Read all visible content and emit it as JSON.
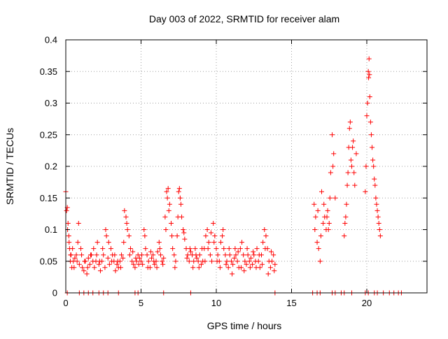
{
  "chart_data": {
    "type": "scatter",
    "title": "Day 003 of 2022, SRMTID for receiver alam",
    "xlabel": "GPS time / hours",
    "ylabel": "SRMTID / TECUs",
    "xlim": [
      0,
      24
    ],
    "ylim": [
      0,
      0.4
    ],
    "xticks": [
      0,
      5,
      10,
      15,
      20
    ],
    "xtick_labels": [
      "0",
      "5",
      "10",
      "15",
      "20"
    ],
    "yticks": [
      0,
      0.05,
      0.1,
      0.15,
      0.2,
      0.25,
      0.3,
      0.35,
      0.4
    ],
    "ytick_labels": [
      "0",
      "0.05",
      "0.1",
      "0.15",
      "0.2",
      "0.25",
      "0.3",
      "0.35",
      "0.4"
    ],
    "grid": true,
    "marker": "+",
    "color": "#ff0000",
    "series": [
      {
        "name": "SRMTID",
        "points": [
          [
            0.0,
            0.16
          ],
          [
            0.05,
            0.13
          ],
          [
            0.1,
            0.135
          ],
          [
            0.15,
            0.11
          ],
          [
            0.2,
            0.09
          ],
          [
            0.25,
            0.07
          ],
          [
            0.3,
            0.05
          ],
          [
            0.35,
            0.06
          ],
          [
            0.4,
            0.04
          ],
          [
            0.5,
            0.05
          ],
          [
            0.6,
            0.055
          ],
          [
            0.7,
            0.06
          ],
          [
            0.8,
            0.08
          ],
          [
            0.9,
            0.045
          ],
          [
            1.0,
            0.07
          ],
          [
            1.1,
            0.04
          ],
          [
            1.2,
            0.035
          ],
          [
            1.3,
            0.05
          ],
          [
            1.4,
            0.03
          ],
          [
            1.5,
            0.055
          ],
          [
            1.6,
            0.045
          ],
          [
            1.7,
            0.06
          ],
          [
            1.8,
            0.05
          ],
          [
            1.9,
            0.04
          ],
          [
            2.0,
            0.05
          ],
          [
            2.1,
            0.08
          ],
          [
            2.2,
            0.045
          ],
          [
            2.3,
            0.035
          ],
          [
            2.4,
            0.05
          ],
          [
            2.5,
            0.06
          ],
          [
            2.6,
            0.04
          ],
          [
            2.7,
            0.09
          ],
          [
            2.8,
            0.055
          ],
          [
            2.9,
            0.045
          ],
          [
            3.0,
            0.07
          ],
          [
            3.1,
            0.06
          ],
          [
            3.2,
            0.05
          ],
          [
            3.3,
            0.035
          ],
          [
            3.4,
            0.045
          ],
          [
            3.5,
            0.04
          ],
          [
            3.6,
            0.05
          ],
          [
            3.7,
            0.06
          ],
          [
            3.8,
            0.055
          ],
          [
            3.9,
            0.13
          ],
          [
            4.0,
            0.12
          ],
          [
            4.1,
            0.1
          ],
          [
            4.2,
            0.09
          ],
          [
            4.3,
            0.07
          ],
          [
            4.4,
            0.05
          ],
          [
            4.5,
            0.045
          ],
          [
            4.6,
            0.04
          ],
          [
            4.7,
            0.05
          ],
          [
            4.8,
            0.06
          ],
          [
            4.9,
            0.055
          ],
          [
            5.0,
            0.05
          ],
          [
            5.1,
            0.045
          ],
          [
            5.2,
            0.1
          ],
          [
            5.3,
            0.07
          ],
          [
            5.4,
            0.06
          ],
          [
            5.5,
            0.05
          ],
          [
            5.6,
            0.04
          ],
          [
            5.7,
            0.055
          ],
          [
            5.8,
            0.06
          ],
          [
            5.9,
            0.045
          ],
          [
            6.0,
            0.05
          ],
          [
            6.1,
            0.065
          ],
          [
            6.2,
            0.08
          ],
          [
            6.3,
            0.06
          ],
          [
            6.4,
            0.05
          ],
          [
            6.5,
            0.055
          ],
          [
            6.6,
            0.12
          ],
          [
            6.7,
            0.16
          ],
          [
            6.8,
            0.165
          ],
          [
            6.9,
            0.14
          ],
          [
            7.0,
            0.11
          ],
          [
            7.1,
            0.07
          ],
          [
            7.2,
            0.06
          ],
          [
            7.3,
            0.05
          ],
          [
            7.4,
            0.09
          ],
          [
            7.5,
            0.16
          ],
          [
            7.6,
            0.15
          ],
          [
            7.7,
            0.12
          ],
          [
            7.8,
            0.1
          ],
          [
            7.9,
            0.085
          ],
          [
            8.0,
            0.07
          ],
          [
            8.1,
            0.06
          ],
          [
            8.2,
            0.05
          ],
          [
            8.3,
            0.065
          ],
          [
            8.4,
            0.06
          ],
          [
            8.5,
            0.05
          ],
          [
            8.6,
            0.07
          ],
          [
            8.7,
            0.055
          ],
          [
            8.8,
            0.05
          ],
          [
            8.9,
            0.06
          ],
          [
            9.0,
            0.045
          ],
          [
            9.1,
            0.05
          ],
          [
            9.2,
            0.07
          ],
          [
            9.3,
            0.09
          ],
          [
            9.4,
            0.1
          ],
          [
            9.5,
            0.08
          ],
          [
            9.6,
            0.06
          ],
          [
            9.7,
            0.05
          ],
          [
            9.8,
            0.11
          ],
          [
            9.9,
            0.09
          ],
          [
            10.0,
            0.07
          ],
          [
            10.1,
            0.06
          ],
          [
            10.2,
            0.05
          ],
          [
            10.3,
            0.08
          ],
          [
            10.4,
            0.09
          ],
          [
            10.5,
            0.07
          ],
          [
            10.6,
            0.06
          ],
          [
            10.7,
            0.05
          ],
          [
            10.8,
            0.04
          ],
          [
            10.9,
            0.06
          ],
          [
            11.0,
            0.05
          ],
          [
            11.1,
            0.045
          ],
          [
            11.2,
            0.055
          ],
          [
            11.3,
            0.06
          ],
          [
            11.4,
            0.05
          ],
          [
            11.5,
            0.04
          ],
          [
            11.6,
            0.07
          ],
          [
            11.7,
            0.08
          ],
          [
            11.8,
            0.06
          ],
          [
            11.9,
            0.05
          ],
          [
            12.0,
            0.045
          ],
          [
            12.1,
            0.06
          ],
          [
            12.2,
            0.05
          ],
          [
            12.3,
            0.055
          ],
          [
            12.4,
            0.045
          ],
          [
            12.5,
            0.06
          ],
          [
            12.6,
            0.05
          ],
          [
            12.7,
            0.07
          ],
          [
            12.8,
            0.05
          ],
          [
            12.9,
            0.04
          ],
          [
            13.0,
            0.06
          ],
          [
            13.1,
            0.08
          ],
          [
            13.2,
            0.1
          ],
          [
            13.3,
            0.09
          ],
          [
            13.4,
            0.07
          ],
          [
            13.5,
            0.05
          ],
          [
            13.6,
            0.04
          ],
          [
            13.7,
            0.05
          ],
          [
            13.8,
            0.06
          ],
          [
            13.9,
            0.045
          ],
          [
            0.12,
            0.1
          ],
          [
            0.22,
            0.08
          ],
          [
            0.32,
            0.06
          ],
          [
            0.45,
            0.07
          ],
          [
            0.55,
            0.04
          ],
          [
            0.75,
            0.05
          ],
          [
            0.85,
            0.11
          ],
          [
            1.05,
            0.06
          ],
          [
            1.25,
            0.05
          ],
          [
            1.45,
            0.04
          ],
          [
            1.65,
            0.06
          ],
          [
            1.85,
            0.07
          ],
          [
            2.05,
            0.06
          ],
          [
            2.25,
            0.05
          ],
          [
            2.45,
            0.07
          ],
          [
            2.65,
            0.1
          ],
          [
            2.85,
            0.08
          ],
          [
            3.05,
            0.05
          ],
          [
            3.25,
            0.06
          ],
          [
            3.45,
            0.05
          ],
          [
            3.65,
            0.04
          ],
          [
            3.85,
            0.08
          ],
          [
            4.05,
            0.11
          ],
          [
            4.25,
            0.06
          ],
          [
            4.45,
            0.065
          ],
          [
            4.65,
            0.055
          ],
          [
            4.85,
            0.045
          ],
          [
            5.05,
            0.06
          ],
          [
            5.25,
            0.09
          ],
          [
            5.45,
            0.04
          ],
          [
            5.65,
            0.065
          ],
          [
            5.85,
            0.05
          ],
          [
            6.05,
            0.04
          ],
          [
            6.25,
            0.07
          ],
          [
            6.45,
            0.045
          ],
          [
            6.65,
            0.1
          ],
          [
            6.75,
            0.15
          ],
          [
            6.85,
            0.13
          ],
          [
            7.05,
            0.09
          ],
          [
            7.25,
            0.04
          ],
          [
            7.45,
            0.12
          ],
          [
            7.55,
            0.165
          ],
          [
            7.65,
            0.14
          ],
          [
            7.85,
            0.095
          ],
          [
            8.05,
            0.055
          ],
          [
            8.25,
            0.07
          ],
          [
            8.45,
            0.04
          ],
          [
            8.65,
            0.06
          ],
          [
            8.85,
            0.04
          ],
          [
            9.05,
            0.07
          ],
          [
            9.25,
            0.05
          ],
          [
            9.45,
            0.07
          ],
          [
            9.65,
            0.095
          ],
          [
            9.85,
            0.08
          ],
          [
            10.05,
            0.05
          ],
          [
            10.25,
            0.04
          ],
          [
            10.45,
            0.1
          ],
          [
            10.65,
            0.045
          ],
          [
            10.85,
            0.07
          ],
          [
            11.05,
            0.03
          ],
          [
            11.25,
            0.07
          ],
          [
            11.45,
            0.065
          ],
          [
            11.65,
            0.04
          ],
          [
            11.85,
            0.035
          ],
          [
            12.05,
            0.07
          ],
          [
            12.25,
            0.04
          ],
          [
            12.45,
            0.065
          ],
          [
            12.65,
            0.04
          ],
          [
            12.85,
            0.06
          ],
          [
            13.05,
            0.045
          ],
          [
            13.25,
            0.07
          ],
          [
            13.45,
            0.03
          ],
          [
            13.65,
            0.065
          ],
          [
            13.85,
            0.035
          ],
          [
            16.5,
            0.14
          ],
          [
            16.6,
            0.12
          ],
          [
            16.7,
            0.08
          ],
          [
            16.8,
            0.07
          ],
          [
            16.9,
            0.05
          ],
          [
            17.0,
            0.16
          ],
          [
            17.1,
            0.11
          ],
          [
            17.2,
            0.12
          ],
          [
            17.3,
            0.1
          ],
          [
            17.4,
            0.13
          ],
          [
            17.5,
            0.11
          ],
          [
            17.6,
            0.19
          ],
          [
            17.7,
            0.25
          ],
          [
            17.8,
            0.22
          ],
          [
            17.9,
            0.15
          ],
          [
            18.5,
            0.09
          ],
          [
            18.6,
            0.12
          ],
          [
            18.7,
            0.17
          ],
          [
            18.8,
            0.23
          ],
          [
            18.9,
            0.27
          ],
          [
            19.0,
            0.2
          ],
          [
            19.1,
            0.24
          ],
          [
            19.2,
            0.17
          ],
          [
            19.3,
            0.22
          ],
          [
            19.9,
            0.16
          ],
          [
            20.0,
            0.28
          ],
          [
            20.1,
            0.35
          ],
          [
            20.15,
            0.37
          ],
          [
            20.2,
            0.31
          ],
          [
            20.3,
            0.25
          ],
          [
            20.4,
            0.21
          ],
          [
            20.5,
            0.18
          ],
          [
            20.6,
            0.15
          ],
          [
            20.7,
            0.13
          ],
          [
            20.8,
            0.11
          ],
          [
            20.9,
            0.09
          ],
          [
            16.55,
            0.1
          ],
          [
            16.75,
            0.13
          ],
          [
            16.95,
            0.09
          ],
          [
            17.15,
            0.14
          ],
          [
            17.35,
            0.12
          ],
          [
            17.45,
            0.1
          ],
          [
            17.55,
            0.15
          ],
          [
            17.75,
            0.2
          ],
          [
            18.55,
            0.11
          ],
          [
            18.65,
            0.14
          ],
          [
            18.75,
            0.19
          ],
          [
            18.85,
            0.26
          ],
          [
            18.95,
            0.21
          ],
          [
            19.05,
            0.23
          ],
          [
            19.15,
            0.19
          ],
          [
            19.95,
            0.2
          ],
          [
            20.05,
            0.3
          ],
          [
            20.12,
            0.34
          ],
          [
            20.18,
            0.345
          ],
          [
            20.25,
            0.27
          ],
          [
            20.35,
            0.23
          ],
          [
            20.45,
            0.2
          ],
          [
            20.55,
            0.17
          ],
          [
            20.65,
            0.14
          ],
          [
            20.75,
            0.12
          ],
          [
            20.85,
            0.1
          ],
          [
            0.1,
            0.0
          ],
          [
            0.9,
            0.0
          ],
          [
            1.2,
            0.0
          ],
          [
            1.5,
            0.0
          ],
          [
            1.8,
            0.0
          ],
          [
            2.2,
            0.0
          ],
          [
            2.5,
            0.0
          ],
          [
            2.8,
            0.0
          ],
          [
            3.5,
            0.0
          ],
          [
            4.6,
            0.0
          ],
          [
            4.8,
            0.0
          ],
          [
            6.5,
            0.0
          ],
          [
            8.3,
            0.0
          ],
          [
            13.9,
            0.0
          ],
          [
            16.4,
            0.0
          ],
          [
            16.7,
            0.0
          ],
          [
            16.9,
            0.0
          ],
          [
            17.7,
            0.0
          ],
          [
            17.9,
            0.0
          ],
          [
            18.3,
            0.0
          ],
          [
            18.5,
            0.0
          ],
          [
            19.0,
            0.0
          ],
          [
            19.9,
            0.0
          ],
          [
            20.1,
            0.0
          ],
          [
            20.5,
            0.0
          ],
          [
            20.7,
            0.0
          ],
          [
            21.1,
            0.0
          ],
          [
            21.5,
            0.0
          ],
          [
            21.8,
            0.0
          ],
          [
            22.1,
            0.0
          ],
          [
            22.3,
            0.0
          ]
        ]
      }
    ]
  }
}
